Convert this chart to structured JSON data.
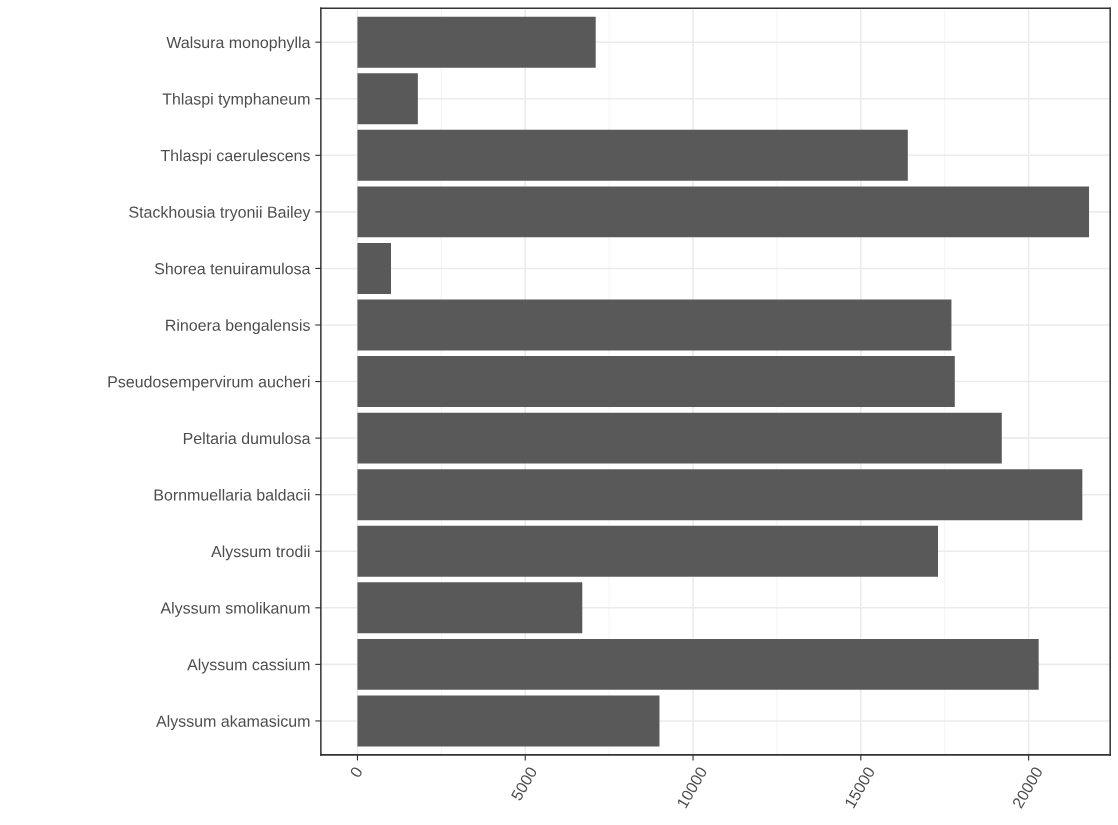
{
  "chart_data": {
    "type": "bar",
    "orientation": "horizontal",
    "categories": [
      "Walsura monophylla",
      "Thlaspi tymphaneum",
      "Thlaspi caerulescens",
      "Stackhousia tryonii Bailey",
      "Shorea tenuiramulosa",
      "Rinoera bengalensis",
      "Pseudosempervirum aucheri",
      "Peltaria dumulosa",
      "Bornmuellaria baldacii",
      "Alyssum trodii",
      "Alyssum smolikanum",
      "Alyssum cassium",
      "Alyssum akamasicum"
    ],
    "values": [
      7100,
      1800,
      16400,
      21800,
      1000,
      17700,
      17800,
      19200,
      21600,
      17300,
      6700,
      20300,
      9000
    ],
    "color": "#595959",
    "xlim": [
      -1090,
      22430
    ],
    "xticks": [
      0,
      5000,
      10000,
      15000,
      20000
    ],
    "grid": true
  }
}
